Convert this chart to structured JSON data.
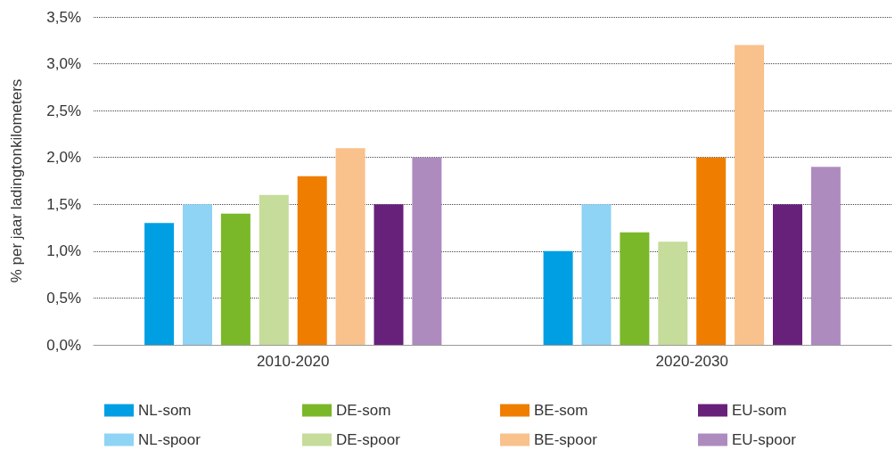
{
  "chart_data": {
    "type": "bar",
    "ylabel": "% per jaar ladingtonkilometers",
    "categories": [
      "2010-2020",
      "2020-2030"
    ],
    "series": [
      {
        "name": "NL-som",
        "color": "#009fe3",
        "values": [
          1.3,
          1.0
        ]
      },
      {
        "name": "NL-spoor",
        "color": "#8fd3f5",
        "values": [
          1.5,
          1.5
        ]
      },
      {
        "name": "DE-som",
        "color": "#7ab829",
        "values": [
          1.4,
          1.2
        ]
      },
      {
        "name": "DE-spoor",
        "color": "#c5dc9a",
        "values": [
          1.6,
          1.1
        ]
      },
      {
        "name": "BE-som",
        "color": "#ef7d00",
        "values": [
          1.8,
          2.0
        ]
      },
      {
        "name": "BE-spoor",
        "color": "#f9c18b",
        "values": [
          2.1,
          3.2
        ]
      },
      {
        "name": "EU-som",
        "color": "#68217a",
        "values": [
          1.5,
          1.5
        ]
      },
      {
        "name": "EU-spoor",
        "color": "#ae8bbf",
        "values": [
          2.0,
          1.9
        ]
      }
    ],
    "ylim": [
      0,
      3.5
    ],
    "yticks": [
      {
        "value": 0,
        "label": "0,0%"
      },
      {
        "value": 0.5,
        "label": "0,5%"
      },
      {
        "value": 1,
        "label": "1,0%"
      },
      {
        "value": 1.5,
        "label": "1,5%"
      },
      {
        "value": 2,
        "label": "2,0%"
      },
      {
        "value": 2.5,
        "label": "2,5%"
      },
      {
        "value": 3,
        "label": "3,0%"
      },
      {
        "value": 3.5,
        "label": "3,5%"
      }
    ],
    "grid": "y",
    "legend": "bottom"
  }
}
